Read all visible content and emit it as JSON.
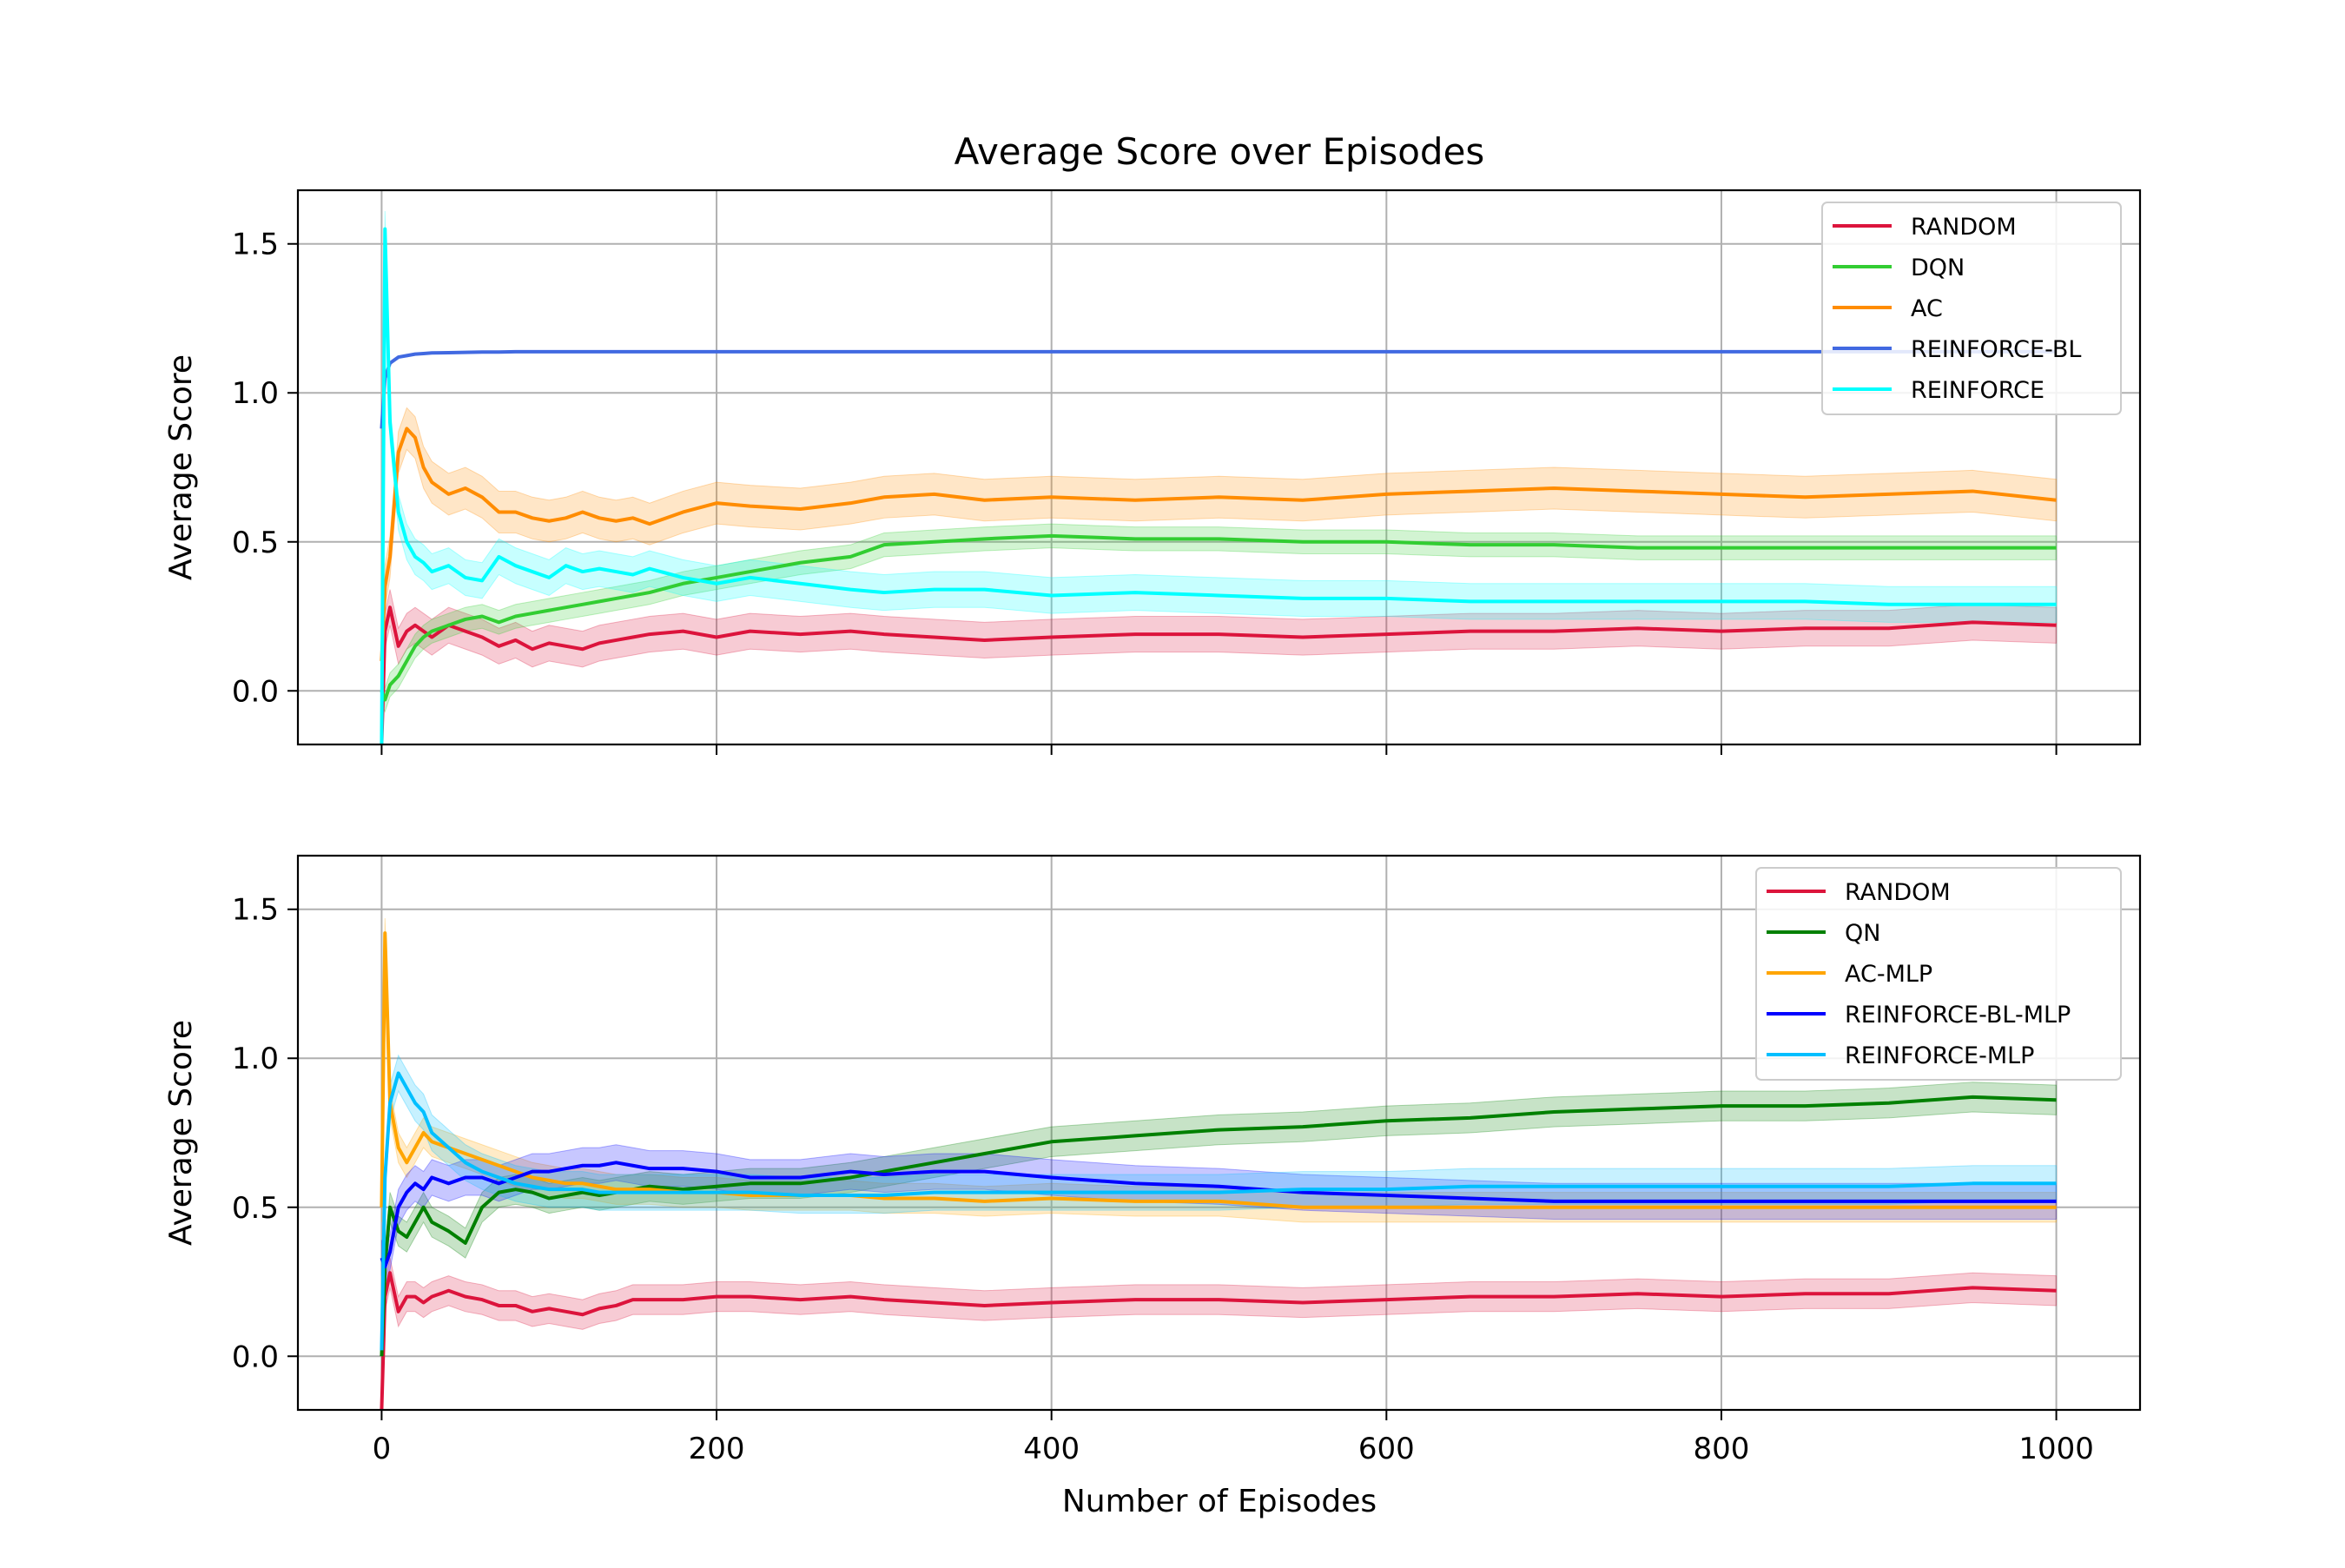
{
  "chart_data": {
    "type": "line",
    "title": "Average Score over Episodes",
    "xlabel": "Number of Episodes",
    "xlim": [
      -50,
      1050
    ],
    "xticks": [
      0,
      200,
      400,
      600,
      800,
      1000
    ],
    "grid": true,
    "legend_placement": "top-right",
    "x": [
      0,
      2,
      5,
      10,
      15,
      20,
      25,
      30,
      40,
      50,
      60,
      70,
      80,
      90,
      100,
      110,
      120,
      130,
      140,
      150,
      160,
      180,
      200,
      220,
      250,
      280,
      300,
      330,
      360,
      400,
      450,
      500,
      550,
      600,
      650,
      700,
      750,
      800,
      850,
      900,
      950,
      1000
    ],
    "panels": [
      {
        "ylabel": "Average Score",
        "ylim": [
          -0.18,
          1.68
        ],
        "yticks": [
          0.0,
          0.5,
          1.0,
          1.5
        ],
        "series": [
          {
            "name": "RANDOM",
            "color": "#dc143c",
            "band": 0.06,
            "values": [
              -0.18,
              0.2,
              0.28,
              0.15,
              0.2,
              0.22,
              0.2,
              0.18,
              0.22,
              0.2,
              0.18,
              0.15,
              0.17,
              0.14,
              0.16,
              0.15,
              0.14,
              0.16,
              0.17,
              0.18,
              0.19,
              0.2,
              0.18,
              0.2,
              0.19,
              0.2,
              0.19,
              0.18,
              0.17,
              0.18,
              0.19,
              0.19,
              0.18,
              0.19,
              0.2,
              0.2,
              0.21,
              0.2,
              0.21,
              0.21,
              0.23,
              0.22
            ]
          },
          {
            "name": "DQN",
            "color": "#32cd32",
            "band": 0.04,
            "values": [
              0.0,
              -0.03,
              0.02,
              0.05,
              0.1,
              0.15,
              0.18,
              0.2,
              0.22,
              0.24,
              0.25,
              0.23,
              0.25,
              0.26,
              0.27,
              0.28,
              0.29,
              0.3,
              0.31,
              0.32,
              0.33,
              0.36,
              0.38,
              0.4,
              0.43,
              0.45,
              0.49,
              0.5,
              0.51,
              0.52,
              0.51,
              0.51,
              0.5,
              0.5,
              0.49,
              0.49,
              0.48,
              0.48,
              0.48,
              0.48,
              0.48,
              0.48
            ]
          },
          {
            "name": "AC",
            "color": "#ff8c00",
            "band": 0.07,
            "values": [
              0.1,
              0.35,
              0.45,
              0.8,
              0.88,
              0.85,
              0.75,
              0.7,
              0.66,
              0.68,
              0.65,
              0.6,
              0.6,
              0.58,
              0.57,
              0.58,
              0.6,
              0.58,
              0.57,
              0.58,
              0.56,
              0.6,
              0.63,
              0.62,
              0.61,
              0.63,
              0.65,
              0.66,
              0.64,
              0.65,
              0.64,
              0.65,
              0.64,
              0.66,
              0.67,
              0.68,
              0.67,
              0.66,
              0.65,
              0.66,
              0.67,
              0.64
            ]
          },
          {
            "name": "REINFORCE-BL",
            "color": "#4169e1",
            "band": 0.0,
            "values": [
              0.88,
              1.05,
              1.1,
              1.12,
              1.125,
              1.13,
              1.132,
              1.134,
              1.135,
              1.136,
              1.137,
              1.137,
              1.138,
              1.138,
              1.138,
              1.138,
              1.138,
              1.138,
              1.138,
              1.138,
              1.138,
              1.138,
              1.138,
              1.138,
              1.138,
              1.138,
              1.138,
              1.138,
              1.138,
              1.138,
              1.138,
              1.138,
              1.138,
              1.138,
              1.138,
              1.138,
              1.138,
              1.138,
              1.138,
              1.138,
              1.138,
              1.138
            ]
          },
          {
            "name": "REINFORCE",
            "color": "#00ffff",
            "band": 0.06,
            "values": [
              -0.18,
              1.55,
              0.9,
              0.6,
              0.5,
              0.45,
              0.43,
              0.4,
              0.42,
              0.38,
              0.37,
              0.45,
              0.42,
              0.4,
              0.38,
              0.42,
              0.4,
              0.41,
              0.4,
              0.39,
              0.41,
              0.38,
              0.36,
              0.38,
              0.36,
              0.34,
              0.33,
              0.34,
              0.34,
              0.32,
              0.33,
              0.32,
              0.31,
              0.31,
              0.3,
              0.3,
              0.3,
              0.3,
              0.3,
              0.29,
              0.29,
              0.29
            ]
          }
        ]
      },
      {
        "ylabel": "Average Score",
        "ylim": [
          -0.18,
          1.68
        ],
        "yticks": [
          0.0,
          0.5,
          1.0,
          1.5
        ],
        "series": [
          {
            "name": "RANDOM",
            "color": "#dc143c",
            "band": 0.05,
            "values": [
              -0.18,
              0.2,
              0.28,
              0.15,
              0.2,
              0.2,
              0.18,
              0.2,
              0.22,
              0.2,
              0.19,
              0.17,
              0.17,
              0.15,
              0.16,
              0.15,
              0.14,
              0.16,
              0.17,
              0.19,
              0.19,
              0.19,
              0.2,
              0.2,
              0.19,
              0.2,
              0.19,
              0.18,
              0.17,
              0.18,
              0.19,
              0.19,
              0.18,
              0.19,
              0.2,
              0.2,
              0.21,
              0.2,
              0.21,
              0.21,
              0.23,
              0.22
            ]
          },
          {
            "name": "QN",
            "color": "#008000",
            "band": 0.05,
            "values": [
              0.0,
              0.3,
              0.5,
              0.42,
              0.4,
              0.45,
              0.5,
              0.45,
              0.42,
              0.38,
              0.5,
              0.55,
              0.56,
              0.55,
              0.53,
              0.54,
              0.55,
              0.54,
              0.55,
              0.56,
              0.57,
              0.56,
              0.57,
              0.58,
              0.58,
              0.6,
              0.62,
              0.65,
              0.68,
              0.72,
              0.74,
              0.76,
              0.77,
              0.79,
              0.8,
              0.82,
              0.83,
              0.84,
              0.84,
              0.85,
              0.87,
              0.86
            ]
          },
          {
            "name": "AC-MLP",
            "color": "#ffa500",
            "band": 0.05,
            "values": [
              0.5,
              1.42,
              0.85,
              0.7,
              0.65,
              0.7,
              0.75,
              0.72,
              0.7,
              0.68,
              0.66,
              0.64,
              0.62,
              0.6,
              0.59,
              0.58,
              0.58,
              0.57,
              0.56,
              0.56,
              0.56,
              0.55,
              0.55,
              0.54,
              0.54,
              0.54,
              0.53,
              0.53,
              0.52,
              0.53,
              0.52,
              0.52,
              0.5,
              0.5,
              0.5,
              0.5,
              0.5,
              0.5,
              0.5,
              0.5,
              0.5,
              0.5
            ]
          },
          {
            "name": "REINFORCE-BL-MLP",
            "color": "#0000ff",
            "band": 0.06,
            "values": [
              0.33,
              0.3,
              0.35,
              0.5,
              0.55,
              0.58,
              0.56,
              0.6,
              0.58,
              0.6,
              0.6,
              0.58,
              0.6,
              0.62,
              0.62,
              0.63,
              0.64,
              0.64,
              0.65,
              0.64,
              0.63,
              0.63,
              0.62,
              0.6,
              0.6,
              0.62,
              0.61,
              0.62,
              0.62,
              0.6,
              0.58,
              0.57,
              0.55,
              0.54,
              0.53,
              0.52,
              0.52,
              0.52,
              0.52,
              0.52,
              0.52,
              0.52
            ]
          },
          {
            "name": "REINFORCE-MLP",
            "color": "#00bfff",
            "band": 0.06,
            "values": [
              0.02,
              0.6,
              0.85,
              0.95,
              0.9,
              0.85,
              0.82,
              0.75,
              0.7,
              0.65,
              0.62,
              0.6,
              0.58,
              0.57,
              0.56,
              0.56,
              0.56,
              0.55,
              0.55,
              0.55,
              0.55,
              0.55,
              0.55,
              0.55,
              0.54,
              0.54,
              0.54,
              0.55,
              0.55,
              0.55,
              0.55,
              0.55,
              0.56,
              0.56,
              0.57,
              0.57,
              0.57,
              0.57,
              0.57,
              0.57,
              0.58,
              0.58
            ]
          }
        ]
      }
    ]
  }
}
